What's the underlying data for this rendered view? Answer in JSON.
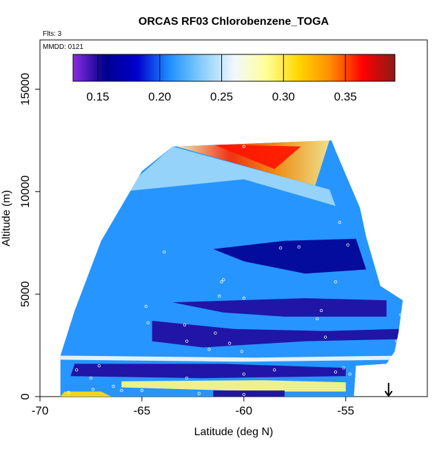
{
  "chart_data": {
    "type": "heatmap",
    "title": "ORCAS RF03 Chlorobenzene_TOGA",
    "annotations": {
      "flights": "Flts: 3",
      "date": "MMDD: 0121"
    },
    "xlabel": "Latitude (deg N)",
    "ylabel": "Altitude (m)",
    "xlim": [
      -70,
      -51
    ],
    "ylim": [
      0,
      17400
    ],
    "x_ticks": [
      -70,
      -65,
      -60,
      -55
    ],
    "x_tick_labels": [
      "-70",
      "-65",
      "-60",
      "-55"
    ],
    "y_ticks": [
      0,
      5000,
      10000,
      15000
    ],
    "y_tick_labels": [
      "0",
      "5000",
      "10000",
      "15000"
    ],
    "colorbar": {
      "range": [
        0.13,
        0.39
      ],
      "ticks": [
        0.15,
        0.2,
        0.25,
        0.3,
        0.35
      ],
      "tick_labels": [
        "0.15",
        "0.20",
        "0.25",
        "0.30",
        "0.35"
      ],
      "colors": [
        "#8a2be2",
        "#00008b",
        "#0000cd",
        "#1e90ff",
        "#87cefa",
        "#f0f8ff",
        "#ffff99",
        "#ffd700",
        "#ff8c00",
        "#ff0000",
        "#8b1a1a"
      ]
    },
    "arrow_marker": {
      "x": -52.9,
      "label": ""
    },
    "domain_outline": [
      [
        -69.0,
        0
      ],
      [
        -54.6,
        0
      ],
      [
        -54.5,
        1500
      ],
      [
        -53.0,
        1600
      ],
      [
        -52.6,
        2200
      ],
      [
        -52.4,
        3200
      ],
      [
        -52.2,
        4700
      ],
      [
        -53.3,
        5400
      ],
      [
        -54.0,
        7800
      ],
      [
        -54.3,
        9200
      ],
      [
        -55.5,
        12000
      ],
      [
        -55.7,
        12500
      ],
      [
        -63.5,
        12200
      ],
      [
        -65.0,
        11000
      ],
      [
        -67.0,
        7600
      ],
      [
        -68.3,
        4200
      ],
      [
        -69.0,
        2000
      ]
    ],
    "layers": [
      {
        "name": "upper_warm",
        "polygon": [
          [
            -63.3,
            12200
          ],
          [
            -55.8,
            12500
          ],
          [
            -56.5,
            10300
          ],
          [
            -58.0,
            10700
          ]
        ],
        "value": 0.32
      },
      {
        "name": "upper_core",
        "polygon": [
          [
            -61.5,
            12300
          ],
          [
            -57.2,
            12200
          ],
          [
            -58.5,
            11100
          ]
        ],
        "value": 0.36
      },
      {
        "name": "upper_light",
        "polygon": [
          [
            -63.5,
            12200
          ],
          [
            -58.0,
            10700
          ],
          [
            -55.8,
            10100
          ],
          [
            -55.5,
            9300
          ],
          [
            -60.0,
            10600
          ],
          [
            -66.0,
            10000
          ]
        ],
        "value": 0.24
      },
      {
        "name": "band_7000",
        "polygon": [
          [
            -61.5,
            7200
          ],
          [
            -58.0,
            7600
          ],
          [
            -54.5,
            7700
          ],
          [
            -54.0,
            6200
          ],
          [
            -57.0,
            6000
          ],
          [
            -60.0,
            6600
          ]
        ],
        "value": 0.16
      },
      {
        "name": "band_4500",
        "polygon": [
          [
            -63.5,
            4600
          ],
          [
            -57.0,
            4800
          ],
          [
            -53.0,
            4700
          ],
          [
            -53.0,
            3900
          ],
          [
            -58.0,
            3900
          ],
          [
            -61.0,
            4100
          ]
        ],
        "value": 0.15
      },
      {
        "name": "band_3000",
        "polygon": [
          [
            -64.5,
            3700
          ],
          [
            -60.5,
            3300
          ],
          [
            -56.0,
            3200
          ],
          [
            -52.4,
            3300
          ],
          [
            -52.4,
            2800
          ],
          [
            -57.0,
            2700
          ],
          [
            -62.0,
            2400
          ],
          [
            -64.5,
            2700
          ]
        ],
        "value": 0.15
      },
      {
        "name": "light_2000",
        "polygon": [
          [
            -69.0,
            2000
          ],
          [
            -59.5,
            1900
          ],
          [
            -52.4,
            2000
          ],
          [
            -52.4,
            1800
          ],
          [
            -60.0,
            1700
          ],
          [
            -69.0,
            1800
          ]
        ],
        "value": 0.26
      },
      {
        "name": "band_1200",
        "polygon": [
          [
            -68.3,
            1600
          ],
          [
            -61.0,
            1600
          ],
          [
            -55.0,
            1400
          ],
          [
            -55.0,
            1000
          ],
          [
            -62.0,
            900
          ],
          [
            -68.5,
            1000
          ]
        ],
        "value": 0.15
      },
      {
        "name": "yellow_500",
        "polygon": [
          [
            -66.0,
            750
          ],
          [
            -59.0,
            800
          ],
          [
            -55.0,
            700
          ],
          [
            -55.0,
            250
          ],
          [
            -59.0,
            250
          ],
          [
            -66.0,
            450
          ]
        ],
        "value": 0.29
      },
      {
        "name": "orange_base",
        "polygon": [
          [
            -68.8,
            250
          ],
          [
            -67.0,
            250
          ],
          [
            -66.5,
            0
          ],
          [
            -69.0,
            0
          ]
        ],
        "value": 0.31
      },
      {
        "name": "blue_base",
        "polygon": [
          [
            -61.5,
            300
          ],
          [
            -58.0,
            300
          ],
          [
            -58.0,
            0
          ],
          [
            -61.5,
            0
          ]
        ],
        "value": 0.15
      }
    ],
    "sample_points": [
      [
        -60.0,
        12200
      ],
      [
        -55.3,
        8500
      ],
      [
        -54.9,
        7400
      ],
      [
        -58.2,
        7250
      ],
      [
        -57.3,
        7300
      ],
      [
        -63.9,
        7050
      ],
      [
        -61.0,
        5700
      ],
      [
        -61.1,
        5600
      ],
      [
        -55.5,
        5600
      ],
      [
        -60.0,
        4800
      ],
      [
        -61.2,
        4900
      ],
      [
        -64.8,
        4400
      ],
      [
        -56.2,
        4200
      ],
      [
        -56.4,
        3800
      ],
      [
        -52.3,
        4000
      ],
      [
        -52.2,
        3300
      ],
      [
        -64.7,
        3600
      ],
      [
        -62.9,
        3500
      ],
      [
        -61.4,
        3100
      ],
      [
        -62.8,
        2700
      ],
      [
        -60.7,
        2600
      ],
      [
        -56.0,
        2900
      ],
      [
        -52.5,
        2700
      ],
      [
        -61.7,
        2300
      ],
      [
        -60.1,
        2200
      ],
      [
        -67.1,
        1500
      ],
      [
        -68.2,
        1300
      ],
      [
        -58.5,
        1300
      ],
      [
        -60.0,
        1100
      ],
      [
        -67.5,
        900
      ],
      [
        -62.8,
        900
      ],
      [
        -55.1,
        1400
      ],
      [
        -55.5,
        1200
      ],
      [
        -54.8,
        1100
      ],
      [
        -66.4,
        500
      ],
      [
        -65.0,
        300
      ],
      [
        -62.2,
        150
      ],
      [
        -60.0,
        100
      ],
      [
        -68.6,
        200
      ],
      [
        -67.4,
        350
      ],
      [
        -66.0,
        300
      ]
    ]
  }
}
